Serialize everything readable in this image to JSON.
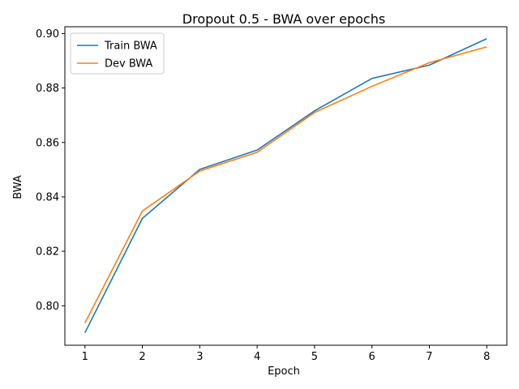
{
  "chart_data": {
    "type": "line",
    "title": "Dropout 0.5 - BWA over epochs",
    "xlabel": "Epoch",
    "ylabel": "BWA",
    "x": [
      1,
      2,
      3,
      4,
      5,
      6,
      7,
      8
    ],
    "xticks": [
      "1",
      "2",
      "3",
      "4",
      "5",
      "6",
      "7",
      "8"
    ],
    "yticks": [
      "0.80",
      "0.82",
      "0.84",
      "0.86",
      "0.88",
      "0.90"
    ],
    "ytick_values": [
      0.8,
      0.82,
      0.84,
      0.86,
      0.88,
      0.9
    ],
    "xlim": [
      0.65,
      8.35
    ],
    "ylim": [
      0.7855,
      0.9025
    ],
    "grid": false,
    "legend_position": "top-left",
    "series": [
      {
        "name": "Train BWA",
        "color": "#1f77b4",
        "values": [
          0.7901,
          0.8321,
          0.8501,
          0.8572,
          0.8716,
          0.8835,
          0.8884,
          0.8981
        ]
      },
      {
        "name": "Dev BWA",
        "color": "#ff7f0e",
        "values": [
          0.7937,
          0.8348,
          0.8495,
          0.8564,
          0.871,
          0.8806,
          0.8893,
          0.8951
        ]
      }
    ]
  }
}
